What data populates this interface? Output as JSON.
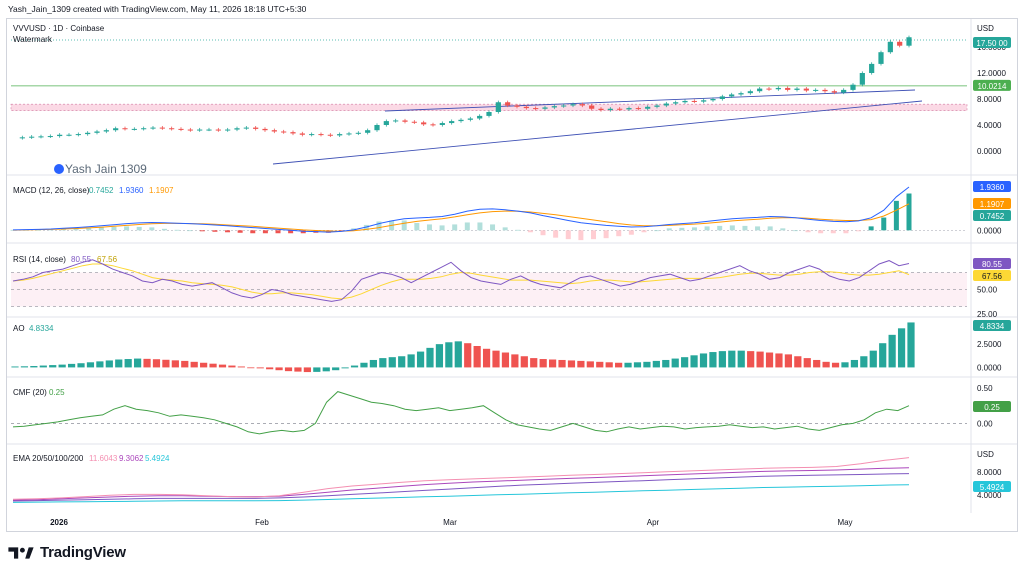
{
  "header": {
    "text": "Yash_Jain_1309 created with TradingView.com, May 11, 2026 18:18 UTC+5:30"
  },
  "symbol": {
    "label": "VVVUSD · 1D · Coinbase",
    "watermark": "Watermark",
    "overlay_text": "Yash  Jain  1309"
  },
  "footer": {
    "brand": "TradingView"
  },
  "colors": {
    "up": "#26a69a",
    "down": "#ef5350",
    "macd": "#2962ff",
    "signal": "#ff9800",
    "rsi": "#7e57c2",
    "rsi_ma": "#fdd835",
    "ema20": "#f48fb1",
    "ema50": "#ab47bc",
    "ema100": "#7e57c2",
    "ema200": "#26c6da",
    "cmf": "#43a047",
    "hline": "#4caf50"
  },
  "chart_data": [
    {
      "panel": "price",
      "type": "candlestick",
      "currency": "USD",
      "x_ticks": [
        "2026",
        "Feb",
        "Mar",
        "Apr",
        "May"
      ],
      "y_ticks": [
        "16.0000",
        "12.0000",
        "8.0000",
        "4.0000",
        "0.0000"
      ],
      "ylim": [
        0,
        20
      ],
      "price_label": "10.0214",
      "last_label": "17.50 00",
      "horizontal_line": 10.0214,
      "zone": [
        6.2,
        7.2
      ],
      "close_path": [
        2.0,
        2.1,
        2.2,
        2.25,
        2.3,
        2.5,
        2.5,
        2.6,
        2.8,
        3.0,
        3.2,
        3.5,
        3.4,
        3.4,
        3.5,
        3.6,
        3.5,
        3.4,
        3.3,
        3.2,
        3.3,
        3.3,
        3.2,
        3.3,
        3.5,
        3.6,
        3.4,
        3.2,
        3.0,
        2.9,
        2.7,
        2.5,
        2.6,
        2.5,
        2.4,
        2.6,
        2.7,
        2.8,
        3.2,
        4.0,
        4.6,
        4.7,
        4.5,
        4.4,
        4.1,
        4.0,
        4.3,
        4.6,
        4.8,
        5.0,
        5.4,
        6.0,
        7.5,
        7.0,
        6.8,
        6.6,
        6.5,
        6.7,
        6.9,
        7.0,
        7.2,
        7.0,
        6.5,
        6.3,
        6.5,
        6.4,
        6.6,
        6.5,
        6.8,
        7.0,
        7.3,
        7.5,
        7.7,
        7.6,
        7.8,
        8.0,
        8.4,
        8.7,
        8.9,
        9.2,
        9.6,
        9.5,
        9.7,
        9.4,
        9.6,
        9.3,
        9.4,
        9.2,
        9.0,
        9.4,
        10.2,
        12.0,
        13.4,
        15.2,
        16.8,
        16.2,
        17.5
      ]
    },
    {
      "panel": "macd",
      "type": "line+histogram",
      "title": "MACD (12, 26, close)",
      "values": [
        "0.7452",
        "1.9360",
        "1.1907"
      ],
      "y_ticks": [
        "0.0000"
      ],
      "ylim": [
        -0.3,
        2.3
      ],
      "macd_line": [
        0.02,
        0.03,
        0.04,
        0.06,
        0.09,
        0.12,
        0.16,
        0.2,
        0.25,
        0.3,
        0.33,
        0.35,
        0.34,
        0.32,
        0.3,
        0.27,
        0.24,
        0.2,
        0.16,
        0.12,
        0.08,
        0.04,
        0.0,
        -0.04,
        -0.06,
        -0.08,
        -0.05,
        0.02,
        0.15,
        0.3,
        0.42,
        0.52,
        0.55,
        0.58,
        0.62,
        0.72,
        0.86,
        0.94,
        0.96,
        0.92,
        0.86,
        0.78,
        0.66,
        0.55,
        0.44,
        0.34,
        0.28,
        0.22,
        0.18,
        0.15,
        0.16,
        0.2,
        0.26,
        0.3,
        0.34,
        0.4,
        0.46,
        0.52,
        0.55,
        0.58,
        0.62,
        0.6,
        0.56,
        0.5,
        0.44,
        0.4,
        0.38,
        0.42,
        0.56,
        0.9,
        1.5,
        1.94
      ],
      "signal_line": [
        0.01,
        0.02,
        0.03,
        0.04,
        0.06,
        0.08,
        0.11,
        0.14,
        0.18,
        0.22,
        0.26,
        0.29,
        0.31,
        0.31,
        0.3,
        0.29,
        0.27,
        0.24,
        0.21,
        0.18,
        0.14,
        0.1,
        0.06,
        0.02,
        -0.01,
        -0.03,
        -0.04,
        -0.02,
        0.04,
        0.12,
        0.22,
        0.32,
        0.4,
        0.46,
        0.52,
        0.6,
        0.7,
        0.78,
        0.84,
        0.86,
        0.85,
        0.82,
        0.76,
        0.7,
        0.62,
        0.54,
        0.46,
        0.38,
        0.3,
        0.24,
        0.2,
        0.2,
        0.22,
        0.25,
        0.28,
        0.32,
        0.37,
        0.42,
        0.46,
        0.5,
        0.54,
        0.56,
        0.56,
        0.54,
        0.5,
        0.46,
        0.44,
        0.44,
        0.48,
        0.64,
        0.9,
        1.19
      ]
    },
    {
      "panel": "rsi",
      "type": "line",
      "title": "RSI (14, close)",
      "values": [
        "80.55",
        "67.56"
      ],
      "y_ticks": [
        "50.00",
        "25.00"
      ],
      "ylim": [
        20,
        100
      ],
      "band": [
        30,
        70
      ],
      "rsi": [
        60,
        62,
        65,
        70,
        72,
        74,
        78,
        82,
        85,
        80,
        74,
        70,
        66,
        60,
        58,
        62,
        60,
        56,
        54,
        56,
        58,
        52,
        46,
        42,
        40,
        44,
        50,
        48,
        44,
        42,
        40,
        38,
        36,
        38,
        48,
        62,
        66,
        70,
        68,
        64,
        58,
        64,
        70,
        76,
        82,
        72,
        64,
        60,
        58,
        56,
        62,
        66,
        60,
        56,
        54,
        52,
        58,
        64,
        66,
        62,
        58,
        54,
        56,
        60,
        64,
        66,
        68,
        64,
        60,
        62,
        66,
        70,
        74,
        78,
        72,
        68,
        62,
        64,
        70,
        74,
        78,
        74,
        66,
        62,
        60,
        64,
        72,
        80,
        84,
        78,
        80.55
      ],
      "rsi_ma": [
        60,
        61,
        63,
        66,
        69,
        72,
        75,
        78,
        80,
        80,
        78,
        75,
        72,
        68,
        64,
        62,
        61,
        60,
        58,
        57,
        56,
        55,
        53,
        50,
        47,
        45,
        45,
        46,
        46,
        45,
        44,
        42,
        40,
        39,
        41,
        45,
        50,
        55,
        59,
        62,
        62,
        62,
        63,
        65,
        68,
        70,
        69,
        67,
        65,
        63,
        61,
        61,
        61,
        60,
        59,
        58,
        57,
        58,
        60,
        61,
        61,
        60,
        59,
        59,
        60,
        61,
        62,
        63,
        63,
        63,
        63,
        64,
        66,
        68,
        69,
        69,
        68,
        67,
        67,
        68,
        70,
        71,
        71,
        70,
        68,
        67,
        67,
        68,
        70,
        72,
        67.56
      ]
    },
    {
      "panel": "ao",
      "type": "histogram",
      "title": "AO",
      "values": [
        "4.8334"
      ],
      "y_ticks": [
        "2.5000",
        "0.0000"
      ],
      "ylim": [
        -0.6,
        5.2
      ],
      "bars": [
        0.1,
        0.12,
        0.15,
        0.2,
        0.25,
        0.3,
        0.38,
        0.45,
        0.55,
        0.65,
        0.75,
        0.85,
        0.9,
        0.95,
        0.92,
        0.88,
        0.82,
        0.76,
        0.7,
        0.6,
        0.5,
        0.4,
        0.3,
        0.2,
        0.1,
        0.0,
        -0.1,
        -0.2,
        -0.3,
        -0.4,
        -0.45,
        -0.5,
        -0.48,
        -0.42,
        -0.3,
        -0.1,
        0.2,
        0.5,
        0.8,
        1.0,
        1.1,
        1.2,
        1.4,
        1.7,
        2.1,
        2.5,
        2.7,
        2.8,
        2.6,
        2.3,
        2.0,
        1.8,
        1.6,
        1.4,
        1.2,
        1.0,
        0.9,
        0.85,
        0.8,
        0.75,
        0.7,
        0.65,
        0.6,
        0.55,
        0.5,
        0.5,
        0.55,
        0.6,
        0.7,
        0.8,
        0.95,
        1.1,
        1.3,
        1.5,
        1.65,
        1.75,
        1.8,
        1.8,
        1.75,
        1.7,
        1.6,
        1.5,
        1.4,
        1.2,
        1.0,
        0.8,
        0.6,
        0.5,
        0.55,
        0.8,
        1.2,
        1.8,
        2.6,
        3.5,
        4.2,
        4.83
      ]
    },
    {
      "panel": "cmf",
      "type": "line",
      "title": "CMF (20)",
      "values": [
        "0.25"
      ],
      "y_ticks": [
        "0.50",
        "0.00"
      ],
      "ylim": [
        -0.25,
        0.6
      ],
      "cmf": [
        -0.05,
        -0.04,
        -0.02,
        0.0,
        0.02,
        0.05,
        0.08,
        0.1,
        0.12,
        0.2,
        0.25,
        0.2,
        0.18,
        0.15,
        0.1,
        0.12,
        0.1,
        0.08,
        0.05,
        0.0,
        -0.05,
        -0.12,
        -0.15,
        -0.12,
        -0.1,
        -0.12,
        -0.1,
        0.0,
        0.3,
        0.45,
        0.4,
        0.35,
        0.3,
        0.28,
        0.25,
        0.2,
        0.18,
        0.2,
        0.22,
        0.18,
        0.2,
        0.22,
        0.25,
        0.15,
        0.05,
        -0.02,
        -0.05,
        -0.08,
        -0.1,
        -0.05,
        0.0,
        -0.05,
        -0.1,
        -0.12,
        -0.08,
        -0.05,
        -0.08,
        -0.06,
        -0.04,
        -0.05,
        -0.08,
        -0.06,
        -0.05,
        -0.04,
        -0.02,
        -0.04,
        -0.06,
        -0.05,
        -0.08,
        -0.06,
        -0.04,
        -0.08,
        -0.1,
        -0.06,
        -0.02,
        0.0,
        0.05,
        0.15,
        0.2,
        0.18,
        0.25
      ]
    },
    {
      "panel": "ema",
      "type": "line",
      "title": "EMA 20/50/100/200",
      "values": [
        "11.6043",
        "9.3062",
        "5.4924"
      ],
      "currency": "USD",
      "y_ticks": [
        "8.0000",
        "4.0000"
      ],
      "ylim": [
        0,
        14
      ],
      "ema20": [
        2.2,
        2.3,
        2.5,
        2.8,
        3.1,
        3.3,
        3.3,
        3.2,
        3.0,
        2.8,
        2.7,
        3.0,
        3.8,
        4.6,
        5.2,
        5.6,
        6.0,
        6.4,
        6.6,
        6.8,
        7.0,
        7.2,
        7.4,
        7.6,
        7.8,
        8.0,
        8.2,
        8.4,
        8.6,
        8.8,
        9.0,
        9.2,
        9.3,
        9.4,
        9.6,
        10.2,
        11.0,
        11.6
      ],
      "ema50": [
        2.0,
        2.1,
        2.3,
        2.5,
        2.7,
        2.9,
        3.0,
        3.0,
        2.9,
        2.8,
        2.8,
        2.9,
        3.3,
        3.8,
        4.3,
        4.7,
        5.1,
        5.5,
        5.8,
        6.1,
        6.3,
        6.5,
        6.7,
        6.9,
        7.1,
        7.3,
        7.5,
        7.7,
        7.9,
        8.1,
        8.3,
        8.5,
        8.6,
        8.7,
        8.8,
        9.0,
        9.2,
        9.3
      ],
      "ema100": [
        1.8,
        1.9,
        2.0,
        2.1,
        2.2,
        2.3,
        2.4,
        2.4,
        2.4,
        2.4,
        2.4,
        2.5,
        2.7,
        3.0,
        3.3,
        3.6,
        3.9,
        4.2,
        4.5,
        4.8,
        5.1,
        5.4,
        5.6,
        5.8,
        6.0,
        6.2,
        6.4,
        6.6,
        6.8,
        7.0,
        7.2,
        7.4,
        7.5,
        7.6,
        7.7,
        7.8,
        7.9,
        8.0
      ],
      "ema200": [
        1.5,
        1.55,
        1.6,
        1.65,
        1.7,
        1.75,
        1.8,
        1.85,
        1.85,
        1.85,
        1.85,
        1.9,
        2.0,
        2.15,
        2.3,
        2.45,
        2.6,
        2.75,
        2.9,
        3.05,
        3.2,
        3.35,
        3.5,
        3.65,
        3.8,
        3.95,
        4.1,
        4.25,
        4.4,
        4.55,
        4.7,
        4.85,
        4.95,
        5.05,
        5.15,
        5.25,
        5.4,
        5.49
      ]
    }
  ]
}
